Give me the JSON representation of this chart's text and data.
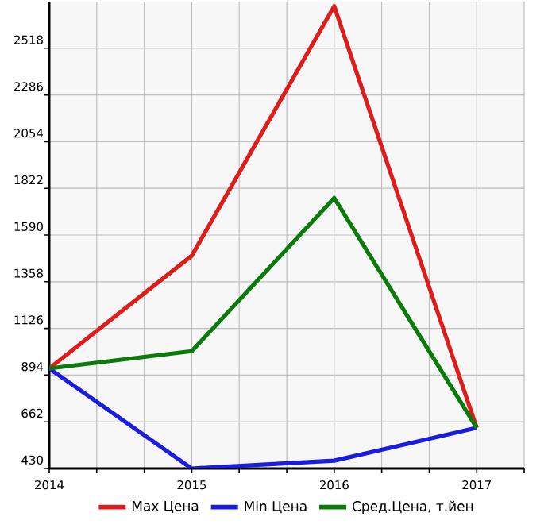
{
  "chart_data": {
    "type": "line",
    "x": [
      2014,
      2015,
      2016,
      2017
    ],
    "series": [
      {
        "name": "Max Цена",
        "color": "#dd1c1c",
        "values": [
          927,
          1487,
          2727,
          632
        ]
      },
      {
        "name": "Min Цена",
        "color": "#1c1cdd",
        "values": [
          927,
          430,
          469,
          632
        ]
      },
      {
        "name": "Сред.Цена, т.йен",
        "color": "#0a7a0a",
        "values": [
          927,
          1013,
          1774,
          632
        ]
      }
    ],
    "xlim": [
      2014,
      2017.333
    ],
    "xticks": [
      2014,
      {
        "value": 2014.333,
        "label": null
      },
      {
        "value": 2014.667,
        "label": null
      },
      2015,
      {
        "value": 2015.333,
        "label": null
      },
      {
        "value": 2015.667,
        "label": null
      },
      2016,
      {
        "value": 2016.333,
        "label": null
      },
      {
        "value": 2016.667,
        "label": null
      },
      2017,
      {
        "value": 2017.333,
        "label": null
      }
    ],
    "ylim": [
      430,
      2750
    ],
    "yticks": [
      430,
      662,
      894,
      1126,
      1358,
      1590,
      1822,
      2054,
      2286,
      2518
    ],
    "grid": true,
    "legend": "bottom",
    "marker": "none",
    "line_style": "solid"
  }
}
